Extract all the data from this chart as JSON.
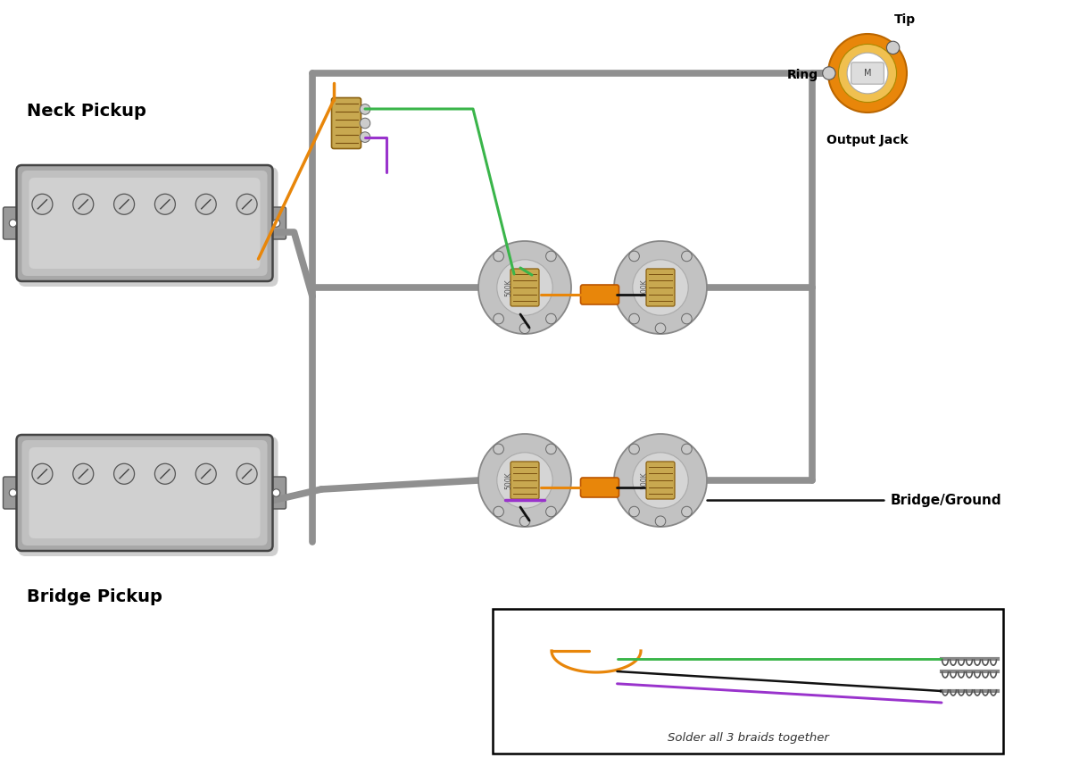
{
  "bg_color": "#ffffff",
  "neck_pickup_label": "Neck Pickup",
  "bridge_pickup_label": "Bridge Pickup",
  "output_jack_label": "Output Jack",
  "bridge_ground_label": "Bridge/Ground",
  "solder_label": "Solder all 3 braids together",
  "ring_label": "Ring",
  "tip_label": "Tip",
  "wire_gray": "#909090",
  "wire_orange": "#E8860A",
  "wire_green": "#3ab54a",
  "wire_purple": "#9933cc",
  "wire_black": "#111111",
  "cap_color": "#E8860A",
  "jack_outer": "#E8860A",
  "pickup_face": "#b8b8b8",
  "pickup_edge": "#444444",
  "pot_face": "#c5c5c5",
  "pot_inner": "#d8d8d8",
  "coil_face": "#c8a850",
  "coil_edge": "#8a6010"
}
